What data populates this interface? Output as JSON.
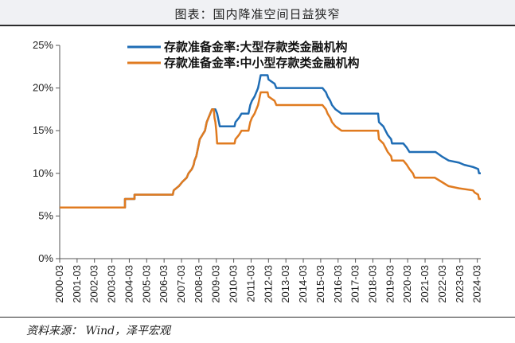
{
  "header": {
    "title": "图表：国内降准空间日益狭窄"
  },
  "footer": {
    "source": "资料来源： Wind，泽平宏观"
  },
  "chart_data": {
    "type": "line",
    "x_axis": {
      "ticks": [
        "2000-03",
        "2001-03",
        "2002-03",
        "2003-03",
        "2004-03",
        "2005-03",
        "2006-03",
        "2007-03",
        "2008-03",
        "2009-03",
        "2010-03",
        "2011-03",
        "2012-03",
        "2013-03",
        "2014-03",
        "2015-03",
        "2016-03",
        "2017-03",
        "2018-03",
        "2019-03",
        "2020-03",
        "2021-03",
        "2022-03",
        "2023-03",
        "2024-03"
      ],
      "range": [
        2000.0,
        2024.2
      ]
    },
    "y_axis": {
      "ticks": [
        "0%",
        "5%",
        "10%",
        "15%",
        "20%",
        "25%"
      ],
      "range": [
        0,
        25
      ]
    },
    "legend_position": "top",
    "grid": false,
    "series": [
      {
        "name": "存款准备金率:大型存款类金融机构",
        "color": "#1f6db5",
        "points": [
          [
            2000.0,
            6
          ],
          [
            2003.75,
            6
          ],
          [
            2003.75,
            7
          ],
          [
            2004.3,
            7
          ],
          [
            2004.3,
            7.5
          ],
          [
            2006.5,
            7.5
          ],
          [
            2006.55,
            8
          ],
          [
            2006.85,
            8.5
          ],
          [
            2007.05,
            9
          ],
          [
            2007.3,
            9.5
          ],
          [
            2007.4,
            10
          ],
          [
            2007.6,
            10.5
          ],
          [
            2007.7,
            11
          ],
          [
            2007.75,
            11.5
          ],
          [
            2007.85,
            12
          ],
          [
            2007.95,
            13
          ],
          [
            2008.05,
            14
          ],
          [
            2008.2,
            14.5
          ],
          [
            2008.35,
            15
          ],
          [
            2008.4,
            15.5
          ],
          [
            2008.45,
            16
          ],
          [
            2008.55,
            16.5
          ],
          [
            2008.75,
            17.5
          ],
          [
            2008.95,
            17.5
          ],
          [
            2009.05,
            17
          ],
          [
            2009.15,
            16
          ],
          [
            2009.2,
            15.5
          ],
          [
            2010.05,
            15.5
          ],
          [
            2010.1,
            16
          ],
          [
            2010.3,
            16.5
          ],
          [
            2010.45,
            17
          ],
          [
            2010.85,
            17
          ],
          [
            2010.9,
            17.5
          ],
          [
            2010.95,
            18
          ],
          [
            2011.05,
            18.5
          ],
          [
            2011.2,
            19
          ],
          [
            2011.3,
            19.5
          ],
          [
            2011.4,
            20
          ],
          [
            2011.45,
            20.5
          ],
          [
            2011.5,
            21
          ],
          [
            2011.55,
            21.5
          ],
          [
            2011.95,
            21.5
          ],
          [
            2012.0,
            21
          ],
          [
            2012.35,
            20.5
          ],
          [
            2012.45,
            20
          ],
          [
            2015.1,
            20
          ],
          [
            2015.3,
            19.5
          ],
          [
            2015.4,
            19
          ],
          [
            2015.55,
            18.5
          ],
          [
            2015.65,
            18
          ],
          [
            2015.85,
            17.5
          ],
          [
            2016.2,
            17
          ],
          [
            2018.3,
            17
          ],
          [
            2018.35,
            16
          ],
          [
            2018.6,
            15.5
          ],
          [
            2018.85,
            14.5
          ],
          [
            2019.05,
            14
          ],
          [
            2019.1,
            13.5
          ],
          [
            2019.75,
            13.5
          ],
          [
            2019.95,
            13
          ],
          [
            2020.1,
            12.5
          ],
          [
            2021.6,
            12.5
          ],
          [
            2021.95,
            12
          ],
          [
            2022.35,
            11.5
          ],
          [
            2022.95,
            11.25
          ],
          [
            2023.25,
            11
          ],
          [
            2023.75,
            10.75
          ],
          [
            2024.05,
            10.5
          ],
          [
            2024.1,
            10
          ],
          [
            2024.2,
            10
          ]
        ]
      },
      {
        "name": "存款准备金率:中小型存款类金融机构",
        "color": "#e07b20",
        "points": [
          [
            2000.0,
            6
          ],
          [
            2003.75,
            6
          ],
          [
            2003.75,
            7
          ],
          [
            2004.3,
            7
          ],
          [
            2004.3,
            7.5
          ],
          [
            2006.5,
            7.5
          ],
          [
            2006.55,
            8
          ],
          [
            2006.85,
            8.5
          ],
          [
            2007.05,
            9
          ],
          [
            2007.3,
            9.5
          ],
          [
            2007.4,
            10
          ],
          [
            2007.6,
            10.5
          ],
          [
            2007.7,
            11
          ],
          [
            2007.75,
            11.5
          ],
          [
            2007.85,
            12
          ],
          [
            2007.95,
            13
          ],
          [
            2008.05,
            14
          ],
          [
            2008.2,
            14.5
          ],
          [
            2008.35,
            15
          ],
          [
            2008.4,
            15.5
          ],
          [
            2008.45,
            16
          ],
          [
            2008.55,
            16.5
          ],
          [
            2008.75,
            17.5
          ],
          [
            2008.85,
            17.5
          ],
          [
            2008.9,
            16.5
          ],
          [
            2008.95,
            16
          ],
          [
            2009.0,
            15
          ],
          [
            2009.05,
            13.5
          ],
          [
            2010.05,
            13.5
          ],
          [
            2010.1,
            14
          ],
          [
            2010.3,
            14.5
          ],
          [
            2010.45,
            15
          ],
          [
            2010.85,
            15
          ],
          [
            2010.9,
            15.5
          ],
          [
            2010.95,
            16
          ],
          [
            2011.05,
            16.5
          ],
          [
            2011.2,
            17
          ],
          [
            2011.3,
            17.5
          ],
          [
            2011.4,
            18
          ],
          [
            2011.45,
            18.5
          ],
          [
            2011.5,
            19
          ],
          [
            2011.55,
            19.5
          ],
          [
            2011.95,
            19.5
          ],
          [
            2012.0,
            19
          ],
          [
            2012.35,
            18.5
          ],
          [
            2012.45,
            18
          ],
          [
            2015.1,
            18
          ],
          [
            2015.3,
            17.5
          ],
          [
            2015.4,
            17
          ],
          [
            2015.55,
            16.5
          ],
          [
            2015.65,
            16
          ],
          [
            2015.85,
            15.5
          ],
          [
            2016.2,
            15
          ],
          [
            2018.3,
            15
          ],
          [
            2018.35,
            14
          ],
          [
            2018.6,
            13.5
          ],
          [
            2018.85,
            12.5
          ],
          [
            2019.05,
            12
          ],
          [
            2019.1,
            11.5
          ],
          [
            2019.75,
            11.5
          ],
          [
            2019.95,
            11
          ],
          [
            2020.1,
            10.5
          ],
          [
            2020.3,
            10
          ],
          [
            2020.4,
            9.5
          ],
          [
            2021.55,
            9.5
          ],
          [
            2021.95,
            9
          ],
          [
            2022.35,
            8.5
          ],
          [
            2022.95,
            8.25
          ],
          [
            2023.75,
            8
          ],
          [
            2023.85,
            7.75
          ],
          [
            2024.05,
            7.5
          ],
          [
            2024.1,
            7
          ],
          [
            2024.2,
            7
          ]
        ]
      }
    ]
  }
}
